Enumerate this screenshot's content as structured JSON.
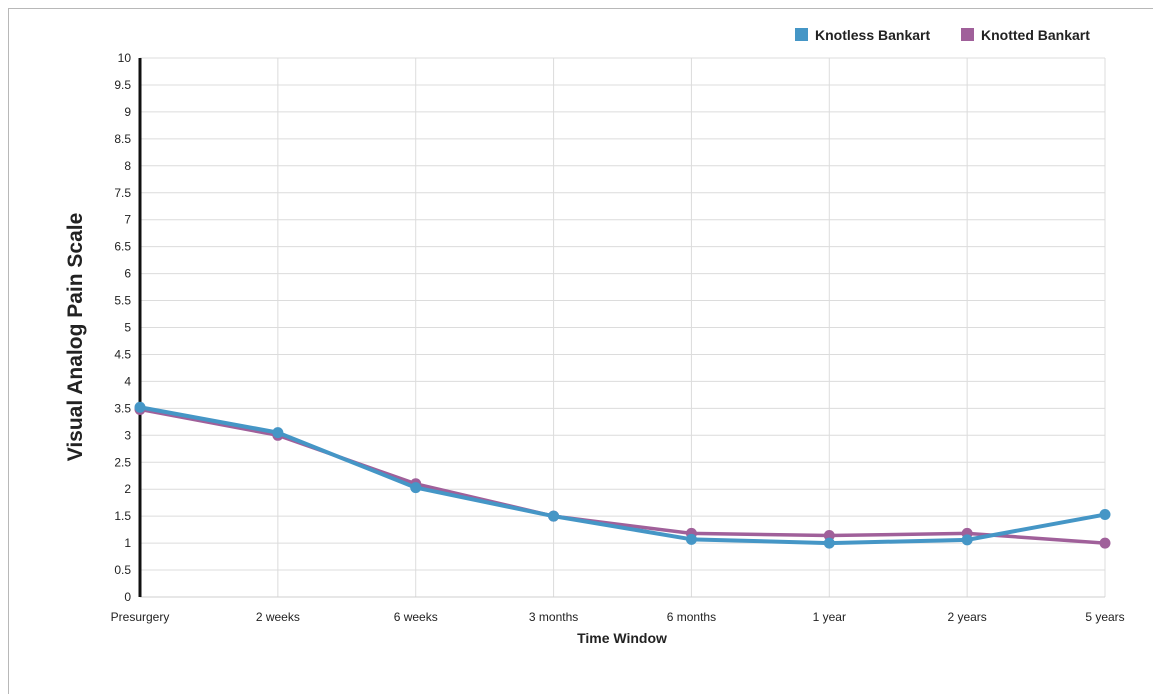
{
  "chart_data": {
    "type": "line",
    "title": "",
    "xlabel": "Time Window",
    "ylabel": "Visual Analog Pain Scale",
    "categories": [
      "Presurgery",
      "2 weeks",
      "6 weeks",
      "3 months",
      "6 months",
      "1 year",
      "2 years",
      "5 years"
    ],
    "yticks": [
      "0",
      "0.5",
      "1",
      "1.5",
      "2",
      "2.5",
      "3",
      "3.5",
      "4",
      "4.5",
      "5",
      "5.5",
      "6",
      "6.5",
      "7",
      "7.5",
      "8",
      "8.5",
      "9",
      "9.5",
      "10"
    ],
    "ylim": [
      0,
      10
    ],
    "grid": true,
    "legend_position": "top-right",
    "series": [
      {
        "name": "Knotless Bankart",
        "color": "#4596c6",
        "values": [
          3.52,
          3.05,
          2.03,
          1.5,
          1.07,
          1.0,
          1.06,
          1.53
        ]
      },
      {
        "name": "Knotted Bankart",
        "color": "#a0609a",
        "values": [
          3.48,
          3.0,
          2.1,
          1.5,
          1.18,
          1.14,
          1.18,
          1.0
        ]
      }
    ]
  }
}
